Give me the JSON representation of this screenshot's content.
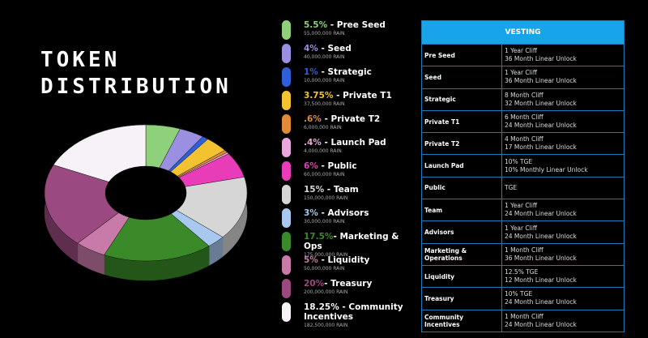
{
  "chart_data": {
    "type": "pie",
    "title": "TOKEN DISTRIBUTION",
    "categories": [
      "Pree Seed",
      "Seed",
      "Strategic",
      "Private T1",
      "Private T2",
      "Launch Pad",
      "Public",
      "Team",
      "Advisors",
      "Marketing & Ops",
      "Liquidity",
      "Treasury",
      "Community Incentives"
    ],
    "values": [
      5.5,
      4,
      1,
      3.75,
      0.6,
      0.4,
      6,
      15,
      3,
      17.5,
      5,
      20,
      18.25
    ],
    "value_labels": [
      "5.5%",
      "4%",
      "1%",
      "3.75%",
      ".6%",
      ".4%",
      "6%",
      "15%",
      "3%",
      "17.5%",
      "5%",
      "20%",
      "18.25%"
    ],
    "separators": [
      " - ",
      " - ",
      " - ",
      " - ",
      " - ",
      " - ",
      " - ",
      " - ",
      " - ",
      "- ",
      " - ",
      "- ",
      " - "
    ],
    "amount_labels": [
      "55,000,000 RAIN",
      "40,000,000 RAIN",
      "10,000,000 RAIN",
      "37,500,000 RAIN",
      "6,000,000 RAIN",
      "4,000,000 RAIN",
      "60,000,000 RAIN",
      "150,000,000 RAIN",
      "30,000,000 RAIN",
      "175,000,000 RAIN",
      "50,000,000 RAIN",
      "200,000,000 RAIN",
      "182,500,000 RAIN"
    ],
    "colors": [
      "#8fd07a",
      "#9a8fe0",
      "#2f5fd8",
      "#f2c230",
      "#e08a3a",
      "#e8a8dc",
      "#e83cb8",
      "#d6d6d6",
      "#a8c8f0",
      "#3a8a2a",
      "#c87aa8",
      "#9a4a80",
      "#f7f2f7"
    ]
  },
  "table": {
    "header": "VESTING",
    "rows": [
      {
        "label": "Pre Seed",
        "terms": [
          "1 Year Cliff",
          "36 Month Linear Unlock"
        ]
      },
      {
        "label": "Seed",
        "terms": [
          "1 Year Cliff",
          "36 Month Linear Unlock"
        ]
      },
      {
        "label": "Strategic",
        "terms": [
          "8 Month Cliff",
          "32 Month Linear Unlock"
        ]
      },
      {
        "label": "Private T1",
        "terms": [
          "6 Month Cliff",
          "24 Month Linear Unlock"
        ]
      },
      {
        "label": "Private T2",
        "terms": [
          "4 Month Cliff",
          "17 Month Linear Unlock"
        ]
      },
      {
        "label": "Launch Pad",
        "terms": [
          "10% TGE",
          "10% Monthly Linear Unlock"
        ]
      },
      {
        "label": "Public",
        "terms": [
          "TGE"
        ]
      },
      {
        "label": "Team",
        "terms": [
          "1 Year Cliff",
          "24 Month Linear Unlock"
        ]
      },
      {
        "label": "Advisors",
        "terms": [
          "1 Year Cliff",
          "24 Month Linear Unlock"
        ]
      },
      {
        "label": "Marketing & Operations",
        "terms": [
          "1 Month Cliff",
          "36 Month Linear Unlock"
        ]
      },
      {
        "label": "Liquidity",
        "terms": [
          "12.5% TGE",
          "12 Month Linear Unlock"
        ]
      },
      {
        "label": "Treasury",
        "terms": [
          "10% TGE",
          "24 Month Linear Unlock"
        ]
      },
      {
        "label": "Community Incentives",
        "terms": [
          "1 Month Cliff",
          "24 Month Linear Unlock"
        ]
      }
    ]
  }
}
